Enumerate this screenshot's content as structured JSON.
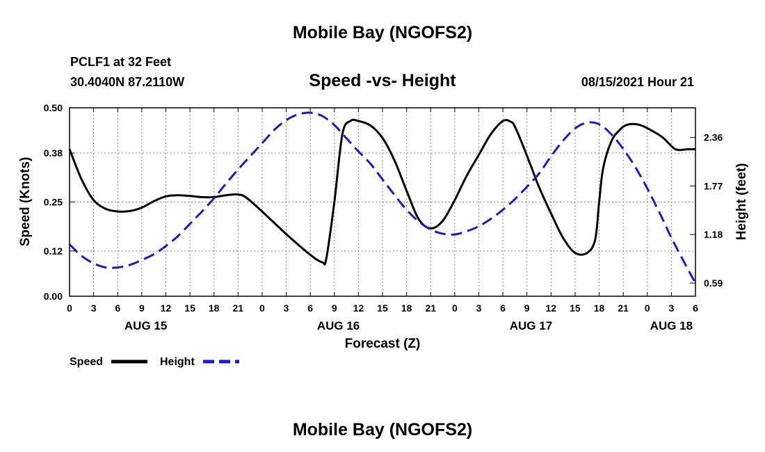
{
  "page": {
    "title": "Mobile Bay (NGOFS2)",
    "footer_title": "Mobile Bay (NGOFS2)",
    "station": "PCLF1 at 32 Feet",
    "coordinates": "30.4040N  87.2110W",
    "chart_title": "Speed -vs- Height",
    "datetime": "08/15/2021 Hour 21"
  },
  "chart_data": {
    "type": "line",
    "title": "Speed -vs- Height",
    "xlabel": "Forecast (Z)",
    "ylabel": "Speed (Knots)",
    "y2label": "Height (feet)",
    "x_unit": "hours from 2021-08-15 00Z",
    "xlim": [
      0,
      78
    ],
    "ylim": [
      0,
      0.5
    ],
    "y2lim": [
      0.43,
      2.72
    ],
    "yticks": [
      0.0,
      0.12,
      0.25,
      0.38,
      0.5
    ],
    "ytick_labels": [
      "0.00",
      "0.12",
      "0.25",
      "0.38",
      "0.50"
    ],
    "y2ticks": [
      0.59,
      1.18,
      1.77,
      2.36
    ],
    "y2tick_labels": [
      "0.59",
      "1.18",
      "1.77",
      "2.36"
    ],
    "xticks": [
      0,
      3,
      6,
      9,
      12,
      15,
      18,
      21,
      24,
      27,
      30,
      33,
      36,
      39,
      42,
      45,
      48,
      51,
      54,
      57,
      60,
      63,
      66,
      69,
      72,
      75,
      78
    ],
    "xtick_labels": [
      "0",
      "3",
      "6",
      "9",
      "12",
      "15",
      "18",
      "21",
      "0",
      "3",
      "6",
      "9",
      "12",
      "15",
      "18",
      "21",
      "0",
      "3",
      "6",
      "9",
      "12",
      "15",
      "18",
      "21",
      "0",
      "3",
      "6"
    ],
    "day_labels": [
      {
        "x": 9.5,
        "label": "AUG 15"
      },
      {
        "x": 33.5,
        "label": "AUG 16"
      },
      {
        "x": 57.5,
        "label": "AUG 17"
      },
      {
        "x": 75,
        "label": "AUG 18"
      }
    ],
    "grid": true,
    "legend_position": "bottom-left",
    "series": [
      {
        "name": "Speed",
        "axis": "left",
        "color": "#000000",
        "style": "solid",
        "x": [
          0,
          1.5,
          3,
          4.5,
          6,
          7.5,
          9,
          10.5,
          12,
          13.5,
          15,
          16.5,
          18,
          19.5,
          21,
          22,
          24,
          27,
          30,
          31.5,
          32,
          33,
          34,
          35,
          36,
          37.5,
          39,
          40.5,
          42,
          43.5,
          45,
          46.5,
          48,
          49.5,
          51,
          52.5,
          54,
          55,
          55.5,
          56.5,
          57.5,
          58.5,
          60,
          61.5,
          63,
          64.5,
          65.5,
          66,
          66.5,
          67.5,
          68.5,
          69.5,
          71,
          72.5,
          74,
          75.5,
          77,
          78
        ],
        "values": [
          0.39,
          0.31,
          0.255,
          0.232,
          0.225,
          0.226,
          0.235,
          0.252,
          0.265,
          0.268,
          0.266,
          0.263,
          0.263,
          0.268,
          0.27,
          0.262,
          0.225,
          0.165,
          0.11,
          0.09,
          0.1,
          0.25,
          0.43,
          0.465,
          0.465,
          0.453,
          0.42,
          0.36,
          0.28,
          0.205,
          0.18,
          0.2,
          0.255,
          0.32,
          0.375,
          0.43,
          0.465,
          0.463,
          0.45,
          0.4,
          0.345,
          0.29,
          0.22,
          0.155,
          0.115,
          0.115,
          0.15,
          0.25,
          0.34,
          0.41,
          0.44,
          0.455,
          0.455,
          0.44,
          0.42,
          0.39,
          0.39,
          0.39
        ],
        "dense_note": ""
      },
      {
        "name": "Height",
        "axis": "right",
        "color": "#1a1ad6",
        "style": "dashed",
        "x": [
          0,
          1.5,
          3,
          4.5,
          6,
          7.5,
          9,
          10.5,
          12,
          13.5,
          15,
          16.5,
          18,
          19.5,
          21,
          22.5,
          24,
          25.5,
          27,
          28.5,
          30,
          31.5,
          33,
          34.5,
          36,
          37.5,
          39,
          40.5,
          42,
          43.5,
          45,
          46.5,
          48,
          49.5,
          51,
          52.5,
          54,
          55.5,
          57,
          58.5,
          60,
          61.5,
          63,
          64.5,
          66,
          67.5,
          69,
          70.5,
          72,
          73.5,
          75,
          76.5,
          78
        ],
        "values": [
          1.06,
          0.92,
          0.83,
          0.78,
          0.78,
          0.81,
          0.87,
          0.94,
          1.04,
          1.16,
          1.31,
          1.46,
          1.62,
          1.8,
          1.97,
          2.13,
          2.29,
          2.45,
          2.57,
          2.64,
          2.66,
          2.62,
          2.51,
          2.35,
          2.19,
          2.04,
          1.85,
          1.66,
          1.48,
          1.34,
          1.24,
          1.19,
          1.18,
          1.22,
          1.28,
          1.37,
          1.48,
          1.61,
          1.76,
          1.92,
          2.13,
          2.32,
          2.47,
          2.54,
          2.52,
          2.4,
          2.22,
          2.0,
          1.74,
          1.45,
          1.14,
          0.86,
          0.59
        ]
      }
    ]
  }
}
